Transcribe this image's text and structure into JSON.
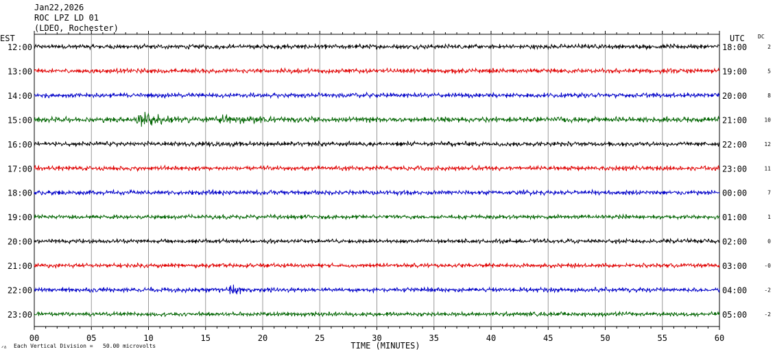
{
  "header": {
    "date": "Jan22,2026",
    "station": "ROC LPZ LD 01",
    "location": "(LDEO, Rochester)"
  },
  "left_axis_title": "EST",
  "right_axis_title": "UTC",
  "dc_title": "DC",
  "footer_note": "Each Vertical Division =   50.00 microvolts",
  "footer_mark": "ᐟᐞ",
  "chart_data": {
    "type": "line",
    "xlabel": "TIME (MINUTES)",
    "xlim": [
      0,
      60
    ],
    "x_ticks": [
      "00",
      "05",
      "10",
      "15",
      "20",
      "25",
      "30",
      "35",
      "40",
      "45",
      "50",
      "55",
      "60"
    ],
    "x_tick_values": [
      0,
      5,
      10,
      15,
      20,
      25,
      30,
      35,
      40,
      45,
      50,
      55,
      60
    ],
    "colors": [
      "#000000",
      "#e00000",
      "#0000c8",
      "#006400"
    ],
    "grid": true,
    "rows": [
      {
        "est": "12:00",
        "utc": "18:00",
        "dc": "2",
        "color": "#000000",
        "amplitude": 0.22,
        "events": []
      },
      {
        "est": "13:00",
        "utc": "19:00",
        "dc": "5",
        "color": "#e00000",
        "amplitude": 0.22,
        "events": []
      },
      {
        "est": "14:00",
        "utc": "20:00",
        "dc": "8",
        "color": "#0000c8",
        "amplitude": 0.22,
        "events": []
      },
      {
        "est": "15:00",
        "utc": "21:00",
        "dc": "10",
        "color": "#006400",
        "amplitude": 0.25,
        "events": [
          {
            "start": 8.8,
            "end": 16,
            "peak": 0.8
          },
          {
            "start": 16,
            "end": 25,
            "peak": 0.35
          }
        ]
      },
      {
        "est": "16:00",
        "utc": "22:00",
        "dc": "12",
        "color": "#000000",
        "amplitude": 0.22,
        "events": []
      },
      {
        "est": "17:00",
        "utc": "23:00",
        "dc": "11",
        "color": "#e00000",
        "amplitude": 0.22,
        "events": []
      },
      {
        "est": "18:00",
        "utc": "00:00",
        "dc": "7",
        "color": "#0000c8",
        "amplitude": 0.22,
        "events": []
      },
      {
        "est": "19:00",
        "utc": "01:00",
        "dc": "1",
        "color": "#006400",
        "amplitude": 0.2,
        "events": []
      },
      {
        "est": "20:00",
        "utc": "02:00",
        "dc": "0",
        "color": "#000000",
        "amplitude": 0.2,
        "events": []
      },
      {
        "est": "21:00",
        "utc": "03:00",
        "dc": "-0",
        "color": "#e00000",
        "amplitude": 0.2,
        "events": []
      },
      {
        "est": "22:00",
        "utc": "04:00",
        "dc": "-2",
        "color": "#0000c8",
        "amplitude": 0.22,
        "events": [
          {
            "start": 17,
            "end": 23,
            "peak": 0.35
          }
        ]
      },
      {
        "est": "23:00",
        "utc": "05:00",
        "dc": "-2",
        "color": "#006400",
        "amplitude": 0.2,
        "events": []
      }
    ]
  }
}
